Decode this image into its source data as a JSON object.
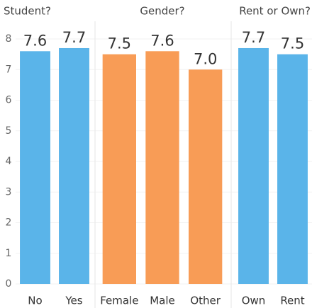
{
  "chart_data": [
    {
      "type": "bar",
      "title": "Student?",
      "categories": [
        "No",
        "Yes"
      ],
      "values": [
        7.6,
        7.7
      ],
      "value_labels": [
        "7.6",
        "7.7"
      ],
      "color": "#5ab4e9",
      "ylim": [
        0,
        8
      ],
      "yticks": [
        0,
        1,
        2,
        3,
        4,
        5,
        6,
        7,
        8
      ]
    },
    {
      "type": "bar",
      "title": "Gender?",
      "categories": [
        "Female",
        "Male",
        "Other"
      ],
      "values": [
        7.5,
        7.6,
        7.0
      ],
      "value_labels": [
        "7.5",
        "7.6",
        "7.0"
      ],
      "color": "#f89c56",
      "ylim": [
        0,
        8
      ]
    },
    {
      "type": "bar",
      "title": "Rent or Own?",
      "categories": [
        "Own",
        "Rent"
      ],
      "values": [
        7.7,
        7.5
      ],
      "value_labels": [
        "7.7",
        "7.5"
      ],
      "color": "#5ab4e9",
      "ylim": [
        0,
        8
      ]
    }
  ]
}
